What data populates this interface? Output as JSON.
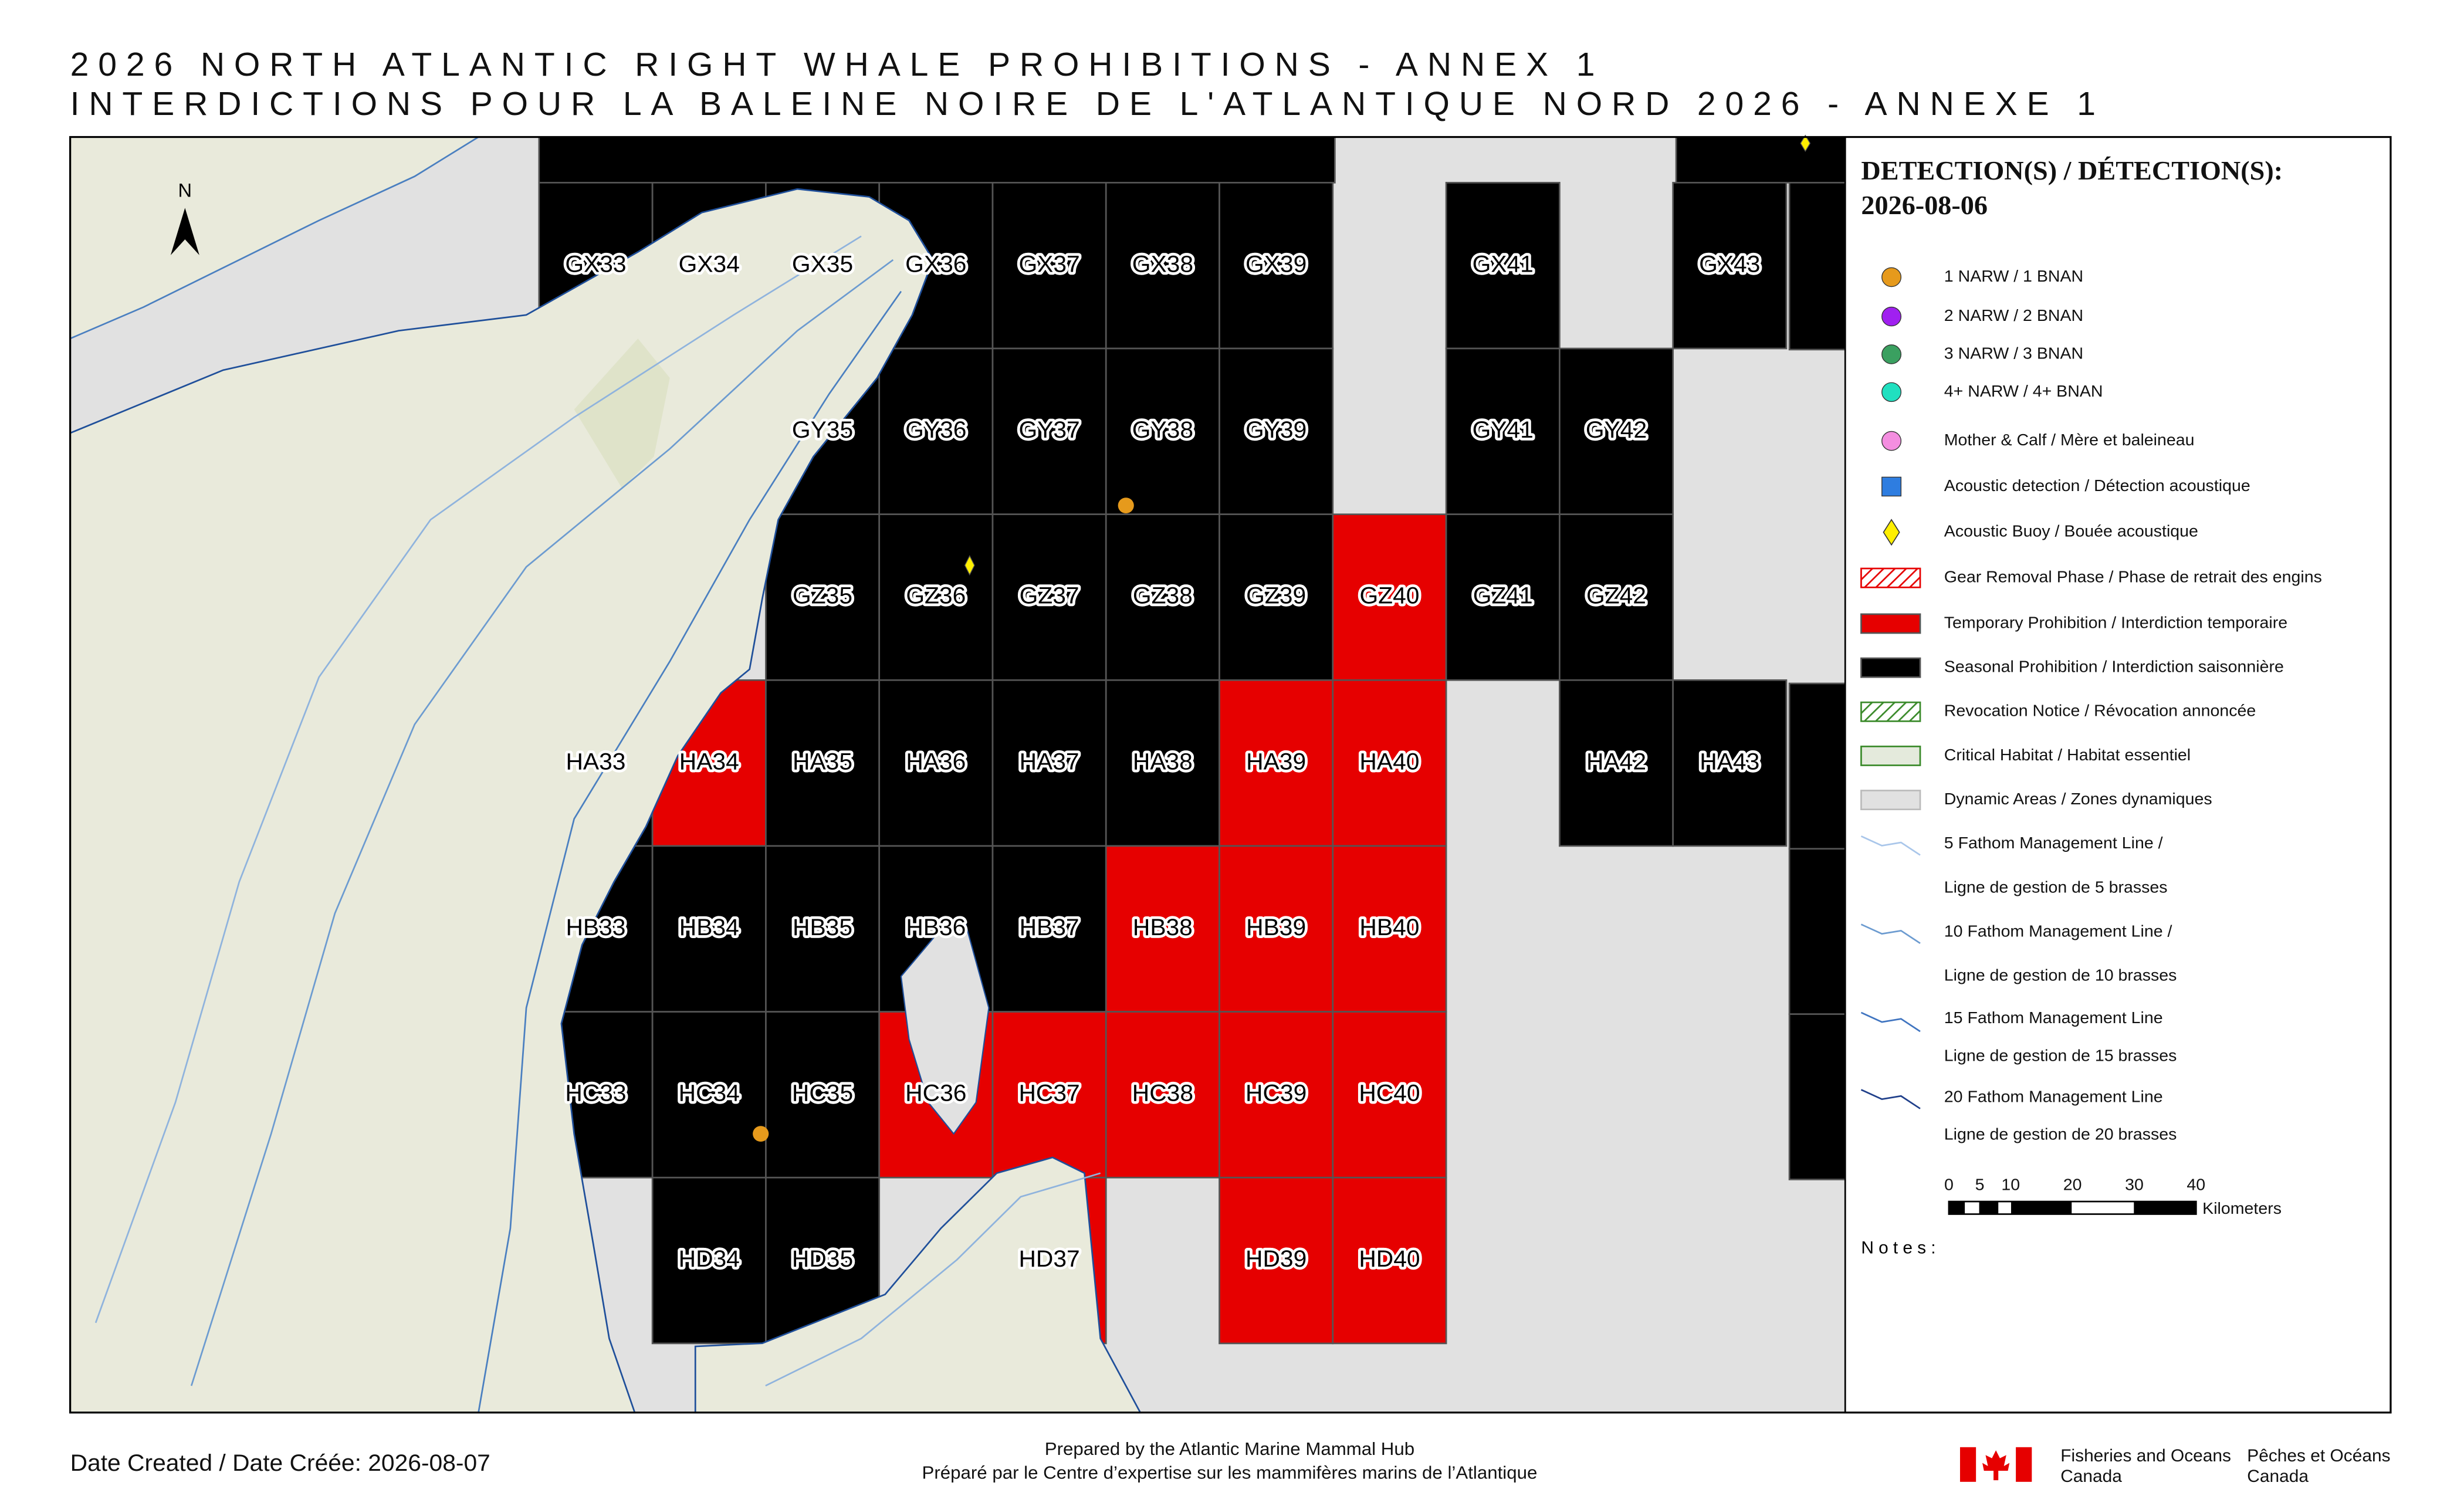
{
  "header": {
    "title": "2026 NORTH ATLANTIC RIGHT WHALE PROHIBITIONS - ANNEX 1",
    "subtitle": "INTERDICTIONS POUR LA BALEINE NOIRE DE L'ATLANTIQUE NORD 2026 - ANNEXE 1"
  },
  "map": {
    "north": "N",
    "cells": [
      {
        "label": "GX33",
        "color": "#000000"
      },
      {
        "label": "GX34",
        "color": "#000000"
      },
      {
        "label": "GX35",
        "color": "#000000"
      },
      {
        "label": "GX36",
        "color": "#000000"
      },
      {
        "label": "GX37",
        "color": "#000000"
      },
      {
        "label": "GX38",
        "color": "#000000"
      },
      {
        "label": "GX39",
        "color": "#000000"
      },
      {
        "label": "GX41",
        "color": "#000000"
      },
      {
        "label": "GX43",
        "color": "#000000"
      },
      {
        "label": "GY35",
        "color": "#000000"
      },
      {
        "label": "GY36",
        "color": "#000000"
      },
      {
        "label": "GY37",
        "color": "#000000"
      },
      {
        "label": "GY38",
        "color": "#000000"
      },
      {
        "label": "GY39",
        "color": "#000000"
      },
      {
        "label": "GY41",
        "color": "#000000"
      },
      {
        "label": "GY42",
        "color": "#000000"
      },
      {
        "label": "GZ35",
        "color": "#000000"
      },
      {
        "label": "GZ36",
        "color": "#000000"
      },
      {
        "label": "GZ37",
        "color": "#000000"
      },
      {
        "label": "GZ38",
        "color": "#000000"
      },
      {
        "label": "GZ39",
        "color": "#000000"
      },
      {
        "label": "GZ40",
        "color": "#e60000"
      },
      {
        "label": "GZ41",
        "color": "#000000"
      },
      {
        "label": "GZ42",
        "color": "#000000"
      },
      {
        "label": "HA33",
        "color": "#000000"
      },
      {
        "label": "HA34",
        "color": "#e60000"
      },
      {
        "label": "HA35",
        "color": "#000000"
      },
      {
        "label": "HA36",
        "color": "#000000"
      },
      {
        "label": "HA37",
        "color": "#000000"
      },
      {
        "label": "HA38",
        "color": "#000000"
      },
      {
        "label": "HA39",
        "color": "#e60000"
      },
      {
        "label": "HA40",
        "color": "#e60000"
      },
      {
        "label": "HA42",
        "color": "#000000"
      },
      {
        "label": "HA43",
        "color": "#000000"
      },
      {
        "label": "HB33",
        "color": "#000000"
      },
      {
        "label": "HB34",
        "color": "#000000"
      },
      {
        "label": "HB35",
        "color": "#000000"
      },
      {
        "label": "HB36",
        "color": "#000000"
      },
      {
        "label": "HB37",
        "color": "#000000"
      },
      {
        "label": "HB38",
        "color": "#e60000"
      },
      {
        "label": "HB39",
        "color": "#e60000"
      },
      {
        "label": "HB40",
        "color": "#e60000"
      },
      {
        "label": "HC33",
        "color": "#000000"
      },
      {
        "label": "HC34",
        "color": "#000000"
      },
      {
        "label": "HC35",
        "color": "#000000"
      },
      {
        "label": "HC36",
        "color": "#e60000"
      },
      {
        "label": "HC37",
        "color": "#e60000"
      },
      {
        "label": "HC38",
        "color": "#e60000"
      },
      {
        "label": "HC39",
        "color": "#e60000"
      },
      {
        "label": "HC40",
        "color": "#e60000"
      },
      {
        "label": "HD34",
        "color": "#000000"
      },
      {
        "label": "HD35",
        "color": "#000000"
      },
      {
        "label": "HD37",
        "color": "#e60000"
      },
      {
        "label": "HD39",
        "color": "#e60000"
      },
      {
        "label": "HD40",
        "color": "#e60000"
      }
    ]
  },
  "legend": {
    "title": "DETECTION(S) / DÉTECTION(S):",
    "date": "2026-08-06",
    "items": [
      "1 NARW / 1 BNAN",
      "2 NARW / 2 BNAN",
      "3 NARW / 3 BNAN",
      "4+ NARW / 4+ BNAN",
      "Mother & Calf / Mère et baleineau",
      "Acoustic detection / Détection acoustique",
      "Acoustic Buoy / Bouée acoustique",
      "Gear Removal Phase / Phase de retrait des engins",
      "Temporary Prohibition / Interdiction temporaire",
      "Seasonal Prohibition / Interdiction saisonnière",
      "Revocation Notice / Révocation annoncée",
      "Critical Habitat / Habitat essentiel",
      "Dynamic Areas / Zones dynamiques",
      "5 Fathom Management Line /",
      "Ligne de gestion de 5 brasses",
      "10 Fathom Management Line /",
      "Ligne de gestion de 10 brasses",
      "15 Fathom Management Line",
      "Ligne de gestion de 15 brasses",
      "20 Fathom Management Line",
      "Ligne de gestion de 20 brasses"
    ],
    "scale_ticks": [
      0,
      5,
      10,
      20,
      30,
      40
    ],
    "scale_unit": "Kilometers",
    "notes": "Notes:"
  },
  "footer": {
    "date_created": "Date Created / Date Créée: 2026-08-07",
    "prepared_en": "Prepared by the Atlantic Marine Mammal Hub",
    "prepared_fr": "Préparé par le Centre d’expertise sur les mammifères marins de l’Atlantique",
    "dfo_en_1": "Fisheries and Oceans",
    "dfo_en_2": "Canada",
    "dfo_fr_1": "Pêches et Océans",
    "dfo_fr_2": "Canada"
  }
}
